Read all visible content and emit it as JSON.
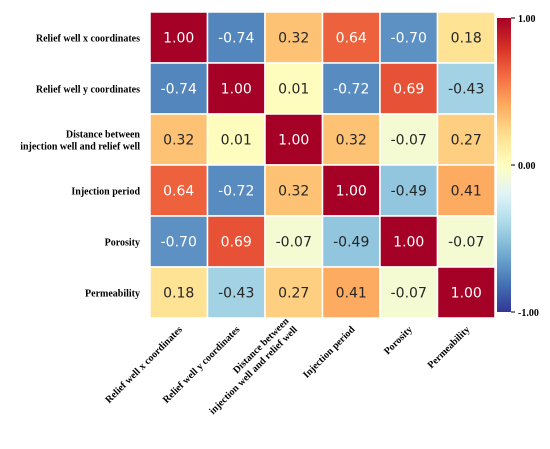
{
  "chart_data": {
    "type": "heatmap",
    "title": "",
    "xlabel": "",
    "ylabel": "",
    "rows": [
      [
        "Relief well x coordinates"
      ],
      [
        "Relief well y coordinates"
      ],
      [
        "Distance between",
        "injection well and relief well"
      ],
      [
        "Injection period"
      ],
      [
        "Porosity"
      ],
      [
        "Permeability"
      ]
    ],
    "columns": [
      [
        "Relief well x coordinates"
      ],
      [
        "Relief well y coordinates"
      ],
      [
        "Distance between",
        "injection well and relief well"
      ],
      [
        "Injection period"
      ],
      [
        "Porosity"
      ],
      [
        "Permeability"
      ]
    ],
    "values": [
      [
        1.0,
        -0.74,
        0.32,
        0.64,
        -0.7,
        0.18
      ],
      [
        -0.74,
        1.0,
        0.01,
        -0.72,
        0.69,
        -0.43
      ],
      [
        0.32,
        0.01,
        1.0,
        0.32,
        -0.07,
        0.27
      ],
      [
        0.64,
        -0.72,
        0.32,
        1.0,
        -0.49,
        0.41
      ],
      [
        -0.7,
        0.69,
        -0.07,
        -0.49,
        1.0,
        -0.07
      ],
      [
        0.18,
        -0.43,
        0.27,
        0.41,
        -0.07,
        1.0
      ]
    ],
    "value_format": "2 decimals",
    "colormap": "RdYlBu_r",
    "vmin": -1.0,
    "vmax": 1.0,
    "colorbar": {
      "ticks": [
        "1.00",
        "0.00",
        "-1.00"
      ],
      "placement": "right"
    },
    "cell_border_color": "#ffffff",
    "colors": {
      "dark_red": "#a50026",
      "red": "#d73027",
      "orange": "#f46d43",
      "light_orange": "#fdae61",
      "pale_yellow": "#fee090",
      "cream": "#ffffbf",
      "pale_blue": "#e0f3f8",
      "light_blue": "#abd9e9",
      "blue": "#74add1",
      "mid_blue": "#4575b4",
      "dark_blue": "#313695"
    }
  }
}
